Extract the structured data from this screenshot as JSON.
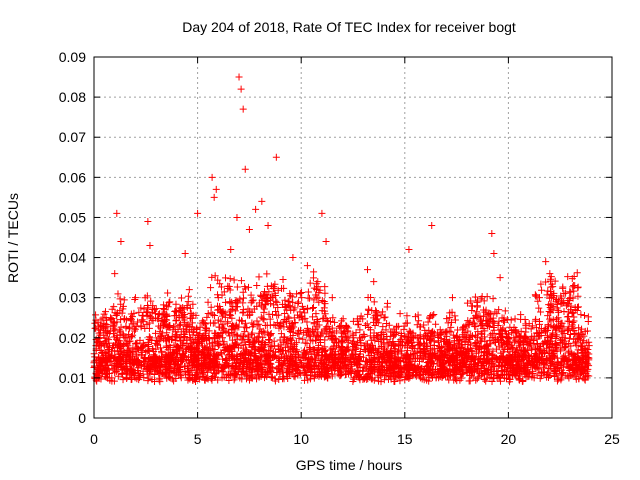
{
  "chart_data": {
    "type": "scatter",
    "title": "Day 204 of 2018, Rate Of TEC Index for receiver bogt",
    "xlabel": "GPS time / hours",
    "ylabel": "ROTI / TECUs",
    "xlim": [
      0,
      25
    ],
    "ylim": [
      0,
      0.09
    ],
    "x_ticks": [
      "0",
      "5",
      "10",
      "15",
      "20",
      "25"
    ],
    "y_ticks": [
      "0",
      "0.01",
      "0.02",
      "0.03",
      "0.04",
      "0.05",
      "0.06",
      "0.07",
      "0.08",
      "0.09"
    ],
    "grid": true,
    "marker": "+",
    "color": "#ff0000",
    "series": [
      {
        "x": [
          0.2,
          0.5,
          0.8,
          1.0,
          1.1,
          1.3,
          1.6,
          2.0,
          2.6,
          2.7,
          3.5,
          4.0,
          4.4,
          4.6,
          5.0,
          5.7,
          5.8,
          5.9,
          6.0,
          6.2,
          6.6,
          6.9,
          7.0,
          7.1,
          7.2,
          7.3,
          7.5,
          7.8,
          8.1,
          8.4,
          8.8,
          9.2,
          9.6,
          9.9,
          10.3,
          10.8,
          11.0,
          11.2,
          11.5,
          12.0,
          12.5,
          13.2,
          13.5,
          14.0,
          14.8,
          15.2,
          15.6,
          16.3,
          16.6,
          17.3,
          17.9,
          18.5,
          19.2,
          19.3,
          19.6,
          20.0,
          20.4,
          21.0,
          21.5,
          21.8,
          22.0,
          22.4,
          22.8,
          23.2,
          23.6
        ],
        "y": [
          0.012,
          0.018,
          0.025,
          0.036,
          0.051,
          0.044,
          0.02,
          0.03,
          0.049,
          0.043,
          0.028,
          0.02,
          0.041,
          0.032,
          0.051,
          0.06,
          0.055,
          0.057,
          0.03,
          0.02,
          0.042,
          0.05,
          0.085,
          0.082,
          0.077,
          0.062,
          0.047,
          0.052,
          0.054,
          0.048,
          0.065,
          0.02,
          0.04,
          0.025,
          0.038,
          0.034,
          0.051,
          0.044,
          0.03,
          0.015,
          0.02,
          0.037,
          0.034,
          0.025,
          0.018,
          0.042,
          0.02,
          0.048,
          0.015,
          0.03,
          0.02,
          0.028,
          0.046,
          0.041,
          0.035,
          0.02,
          0.013,
          0.018,
          0.03,
          0.039,
          0.036,
          0.025,
          0.028,
          0.033,
          0.015
        ]
      }
    ]
  }
}
